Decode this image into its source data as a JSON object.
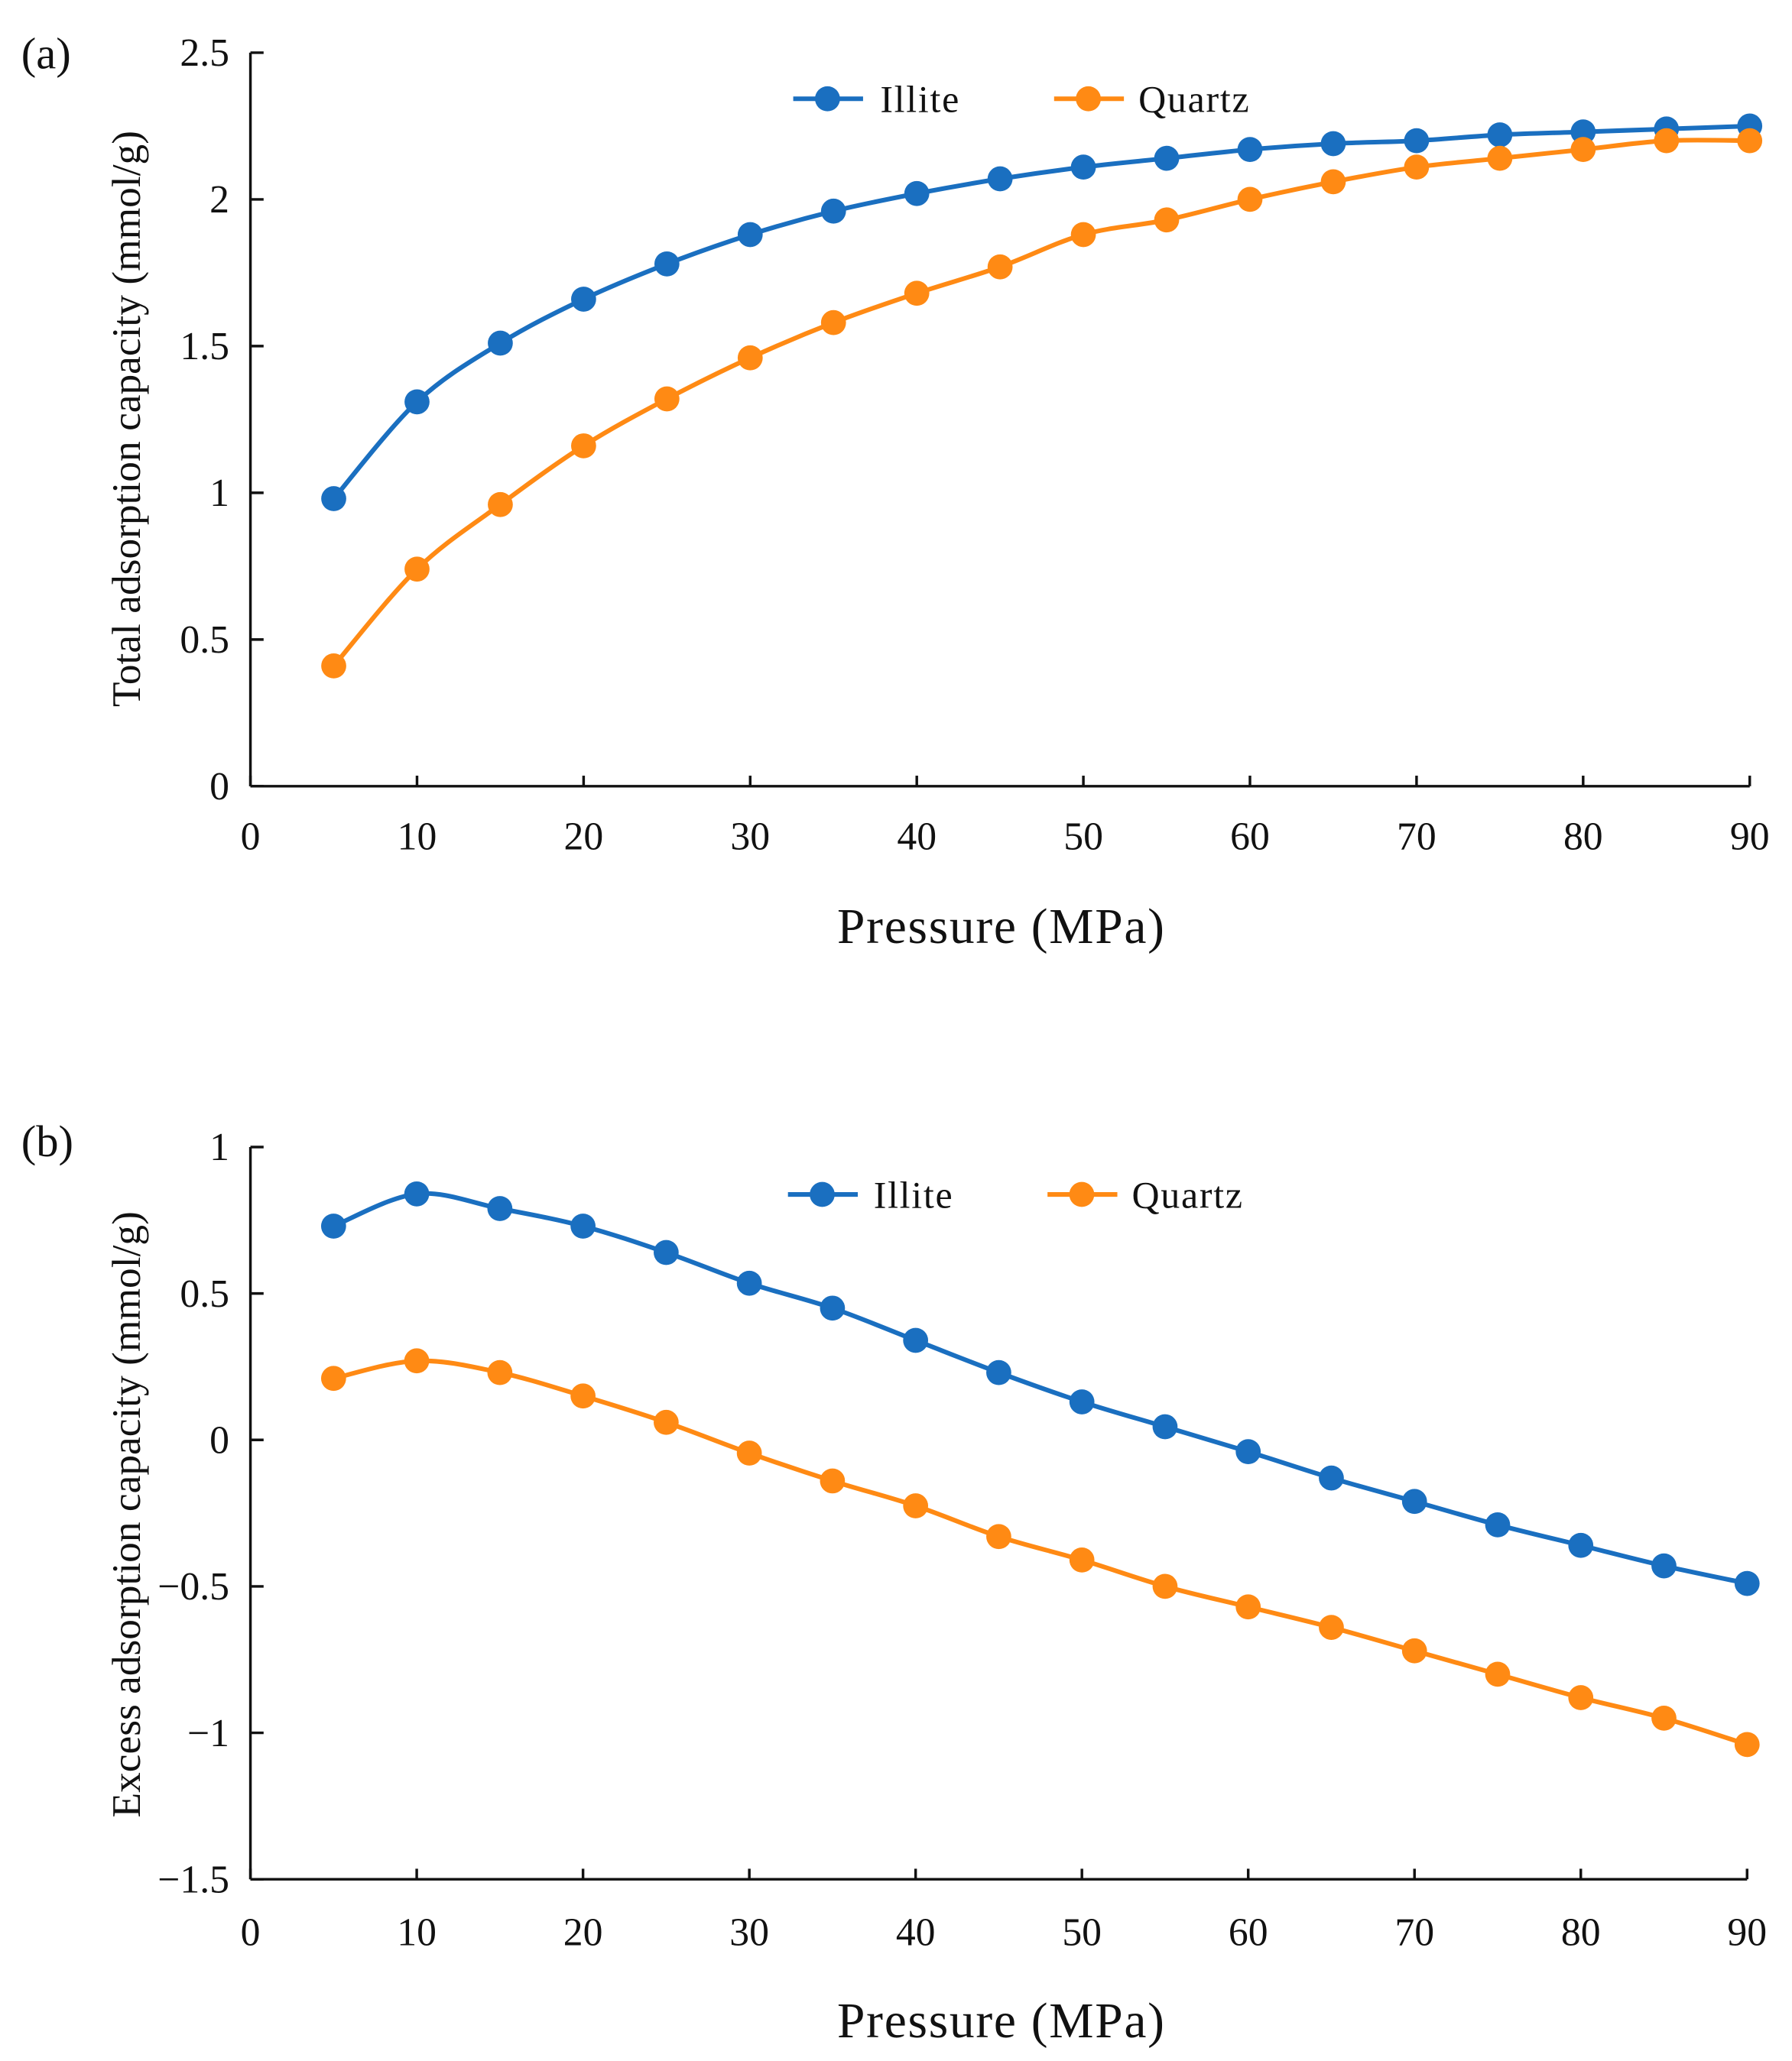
{
  "colors": {
    "illite": "#1a6fc0",
    "quartz": "#ff8a14",
    "axis": "#111111"
  },
  "chart_data": [
    {
      "type": "line",
      "panel_label": "(a)",
      "xlabel": "Pressure (MPa)",
      "ylabel": "Total adsorption capacity (mmol/g)",
      "xlim": [
        0,
        90
      ],
      "ylim": [
        0,
        2.5
      ],
      "xticks": [
        "0",
        "10",
        "20",
        "30",
        "40",
        "50",
        "60",
        "70",
        "80",
        "90"
      ],
      "yticks": [
        "0",
        "0.5",
        "1",
        "1.5",
        "2",
        "2.5"
      ],
      "legend_position": "top-center",
      "x": [
        5,
        10,
        15,
        20,
        25,
        30,
        35,
        40,
        45,
        50,
        55,
        60,
        65,
        70,
        75,
        80,
        85,
        90
      ],
      "series": [
        {
          "name": "Illite",
          "color_key": "illite",
          "values": [
            0.98,
            1.31,
            1.51,
            1.66,
            1.78,
            1.88,
            1.96,
            2.02,
            2.07,
            2.11,
            2.14,
            2.17,
            2.19,
            2.2,
            2.22,
            2.23,
            2.24,
            2.25
          ]
        },
        {
          "name": "Quartz",
          "color_key": "quartz",
          "values": [
            0.41,
            0.74,
            0.96,
            1.16,
            1.32,
            1.46,
            1.58,
            1.68,
            1.77,
            1.88,
            1.93,
            2.0,
            2.06,
            2.11,
            2.14,
            2.17,
            2.2,
            2.2
          ]
        }
      ]
    },
    {
      "type": "line",
      "panel_label": "(b)",
      "xlabel": "Pressure (MPa)",
      "ylabel": "Excess adsorption capacity (mmol/g)",
      "xlim": [
        0,
        90
      ],
      "ylim": [
        -1.5,
        1
      ],
      "xticks": [
        "0",
        "10",
        "20",
        "30",
        "40",
        "50",
        "60",
        "70",
        "80",
        "90"
      ],
      "yticks": [
        "−1.5",
        "−1",
        "−0.5",
        "0",
        "0.5",
        "1"
      ],
      "legend_position": "top-center",
      "x": [
        5,
        10,
        15,
        20,
        25,
        30,
        35,
        40,
        45,
        50,
        55,
        60,
        65,
        70,
        75,
        80,
        85,
        90
      ],
      "series": [
        {
          "name": "Illite",
          "color_key": "illite",
          "values": [
            0.73,
            0.84,
            0.79,
            0.73,
            0.64,
            0.535,
            0.45,
            0.34,
            0.23,
            0.13,
            0.045,
            -0.04,
            -0.13,
            -0.21,
            -0.29,
            -0.36,
            -0.43,
            -0.49
          ]
        },
        {
          "name": "Quartz",
          "color_key": "quartz",
          "values": [
            0.21,
            0.27,
            0.23,
            0.15,
            0.06,
            -0.045,
            -0.14,
            -0.225,
            -0.33,
            -0.41,
            -0.5,
            -0.57,
            -0.64,
            -0.72,
            -0.8,
            -0.88,
            -0.95,
            -1.04
          ]
        }
      ]
    }
  ]
}
